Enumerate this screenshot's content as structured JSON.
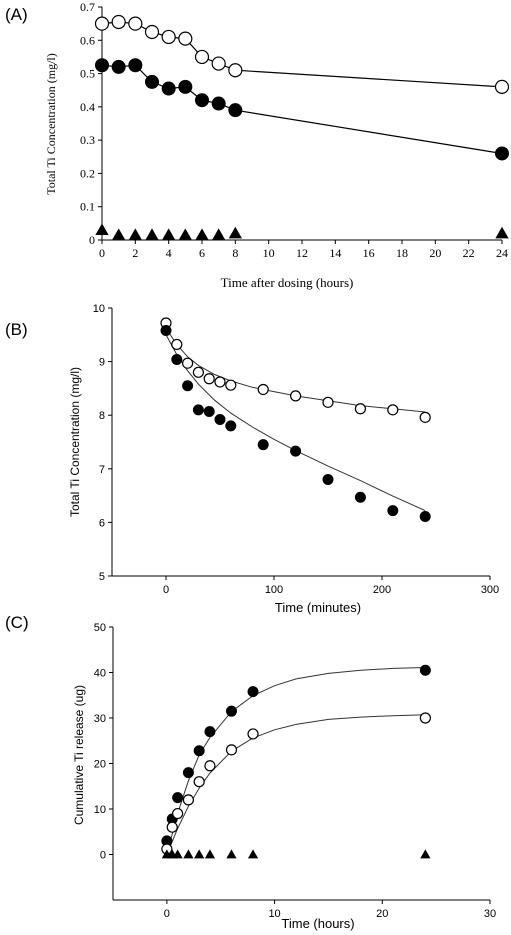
{
  "chart_data": [
    {
      "panel_label": "(A)",
      "type": "line",
      "title": "",
      "xlabel": "Time after dosing (hours)",
      "ylabel": "Total Ti Concentration (mg/l)",
      "xlim": [
        0,
        24
      ],
      "ylim": [
        0,
        0.7
      ],
      "xticks": [
        0,
        2,
        4,
        6,
        8,
        10,
        12,
        14,
        16,
        18,
        20,
        22,
        24
      ],
      "yticks": [
        0,
        0.1,
        0.2,
        0.3,
        0.4,
        0.5,
        0.6,
        0.7
      ],
      "xtick_labels": [
        "0",
        "2",
        "4",
        "6",
        "8",
        "10",
        "12",
        "14",
        "16",
        "18",
        "20",
        "22",
        "24"
      ],
      "ytick_labels": [
        "0",
        "0.1",
        "0.2",
        "0.3",
        "0.4",
        "0.5",
        "0.6",
        "0.7"
      ],
      "grid": false,
      "legend": "none",
      "series": [
        {
          "marker": "open-circle",
          "connected": true,
          "x": [
            0,
            1,
            2,
            3,
            4,
            5,
            6,
            7,
            8,
            24
          ],
          "y": [
            0.65,
            0.655,
            0.65,
            0.625,
            0.61,
            0.605,
            0.55,
            0.53,
            0.51,
            0.46
          ]
        },
        {
          "marker": "filled-circle",
          "connected": true,
          "x": [
            0,
            1,
            2,
            3,
            4,
            5,
            6,
            7,
            8,
            24
          ],
          "y": [
            0.525,
            0.52,
            0.525,
            0.475,
            0.455,
            0.46,
            0.42,
            0.41,
            0.39,
            0.26
          ]
        },
        {
          "marker": "filled-triangle",
          "connected": false,
          "x": [
            0,
            1,
            2,
            3,
            4,
            5,
            6,
            7,
            8,
            24
          ],
          "y": [
            0.03,
            0.015,
            0.015,
            0.015,
            0.015,
            0.015,
            0.015,
            0.015,
            0.02,
            0.02
          ]
        }
      ]
    },
    {
      "panel_label": "(B)",
      "type": "scatter",
      "title": "",
      "xlabel": "Time (minutes)",
      "ylabel": "Total Ti Concentration (mg/l)",
      "xlim": [
        -50,
        300
      ],
      "ylim": [
        5,
        10
      ],
      "xticks": [
        0,
        100,
        200,
        300
      ],
      "yticks": [
        5,
        6,
        7,
        8,
        9,
        10
      ],
      "xtick_labels": [
        "0",
        "100",
        "200",
        "300"
      ],
      "ytick_labels": [
        "5",
        "6",
        "7",
        "8",
        "9",
        "10"
      ],
      "grid": false,
      "legend": "none",
      "series": [
        {
          "marker": "open-circle",
          "x": [
            0,
            10,
            20,
            30,
            40,
            50,
            60,
            90,
            120,
            150,
            180,
            210,
            240
          ],
          "y": [
            9.72,
            9.32,
            8.97,
            8.8,
            8.68,
            8.62,
            8.56,
            8.48,
            8.36,
            8.24,
            8.12,
            8.1,
            7.96
          ]
        },
        {
          "marker": "filled-circle",
          "x": [
            0,
            10,
            20,
            30,
            40,
            50,
            60,
            90,
            120,
            150,
            180,
            210,
            240
          ],
          "y": [
            9.58,
            9.04,
            8.55,
            8.1,
            8.07,
            7.92,
            7.8,
            7.45,
            7.33,
            6.8,
            6.47,
            6.22,
            6.11
          ]
        }
      ],
      "fits": [
        {
          "for": "open-circle",
          "x": [
            0,
            10,
            20,
            30,
            45,
            60,
            80,
            100,
            120,
            150,
            180,
            210,
            240
          ],
          "y": [
            9.62,
            9.32,
            9.09,
            8.93,
            8.76,
            8.64,
            8.52,
            8.44,
            8.36,
            8.27,
            8.18,
            8.12,
            8.06
          ]
        },
        {
          "for": "filled-circle",
          "x": [
            0,
            10,
            20,
            30,
            45,
            60,
            80,
            100,
            120,
            150,
            180,
            210,
            240
          ],
          "y": [
            9.5,
            9.13,
            8.83,
            8.58,
            8.28,
            8.04,
            7.78,
            7.55,
            7.34,
            7.05,
            6.78,
            6.49,
            6.22
          ]
        }
      ]
    },
    {
      "panel_label": "(C)",
      "type": "scatter",
      "title": "",
      "xlabel": "Time (hours)",
      "ylabel": "Cumulative Ti release (ug)",
      "xlim": [
        -5,
        30
      ],
      "ylim": [
        -10,
        50
      ],
      "xticks": [
        0,
        10,
        20,
        30
      ],
      "yticks": [
        0,
        10,
        20,
        30,
        40,
        50
      ],
      "xtick_labels": [
        "0",
        "10",
        "20",
        "30"
      ],
      "ytick_labels": [
        "0",
        "10",
        "20",
        "30",
        "40",
        "50"
      ],
      "grid": false,
      "legend": "none",
      "series": [
        {
          "marker": "filled-circle",
          "x": [
            0,
            0.5,
            1,
            2,
            3,
            4,
            6,
            8,
            24
          ],
          "y": [
            3,
            7.8,
            12.5,
            18,
            22.8,
            27,
            31.5,
            35.8,
            40.5
          ]
        },
        {
          "marker": "open-circle",
          "x": [
            0,
            0.5,
            1,
            2,
            3,
            4,
            6,
            8,
            24
          ],
          "y": [
            1.2,
            6,
            9,
            12,
            16,
            19.5,
            23,
            26.5,
            30
          ]
        },
        {
          "marker": "filled-triangle",
          "x": [
            0,
            0.5,
            1,
            2,
            3,
            4,
            6,
            8,
            24
          ],
          "y": [
            0,
            0,
            0,
            0,
            0,
            0,
            0,
            0,
            0
          ]
        }
      ],
      "fits": [
        {
          "for": "filled-circle",
          "x": [
            0,
            1,
            2,
            3,
            4,
            6,
            8,
            10,
            12,
            15,
            18,
            21,
            24
          ],
          "y": [
            0,
            9,
            16.2,
            21.9,
            25.7,
            31.4,
            34.9,
            37.1,
            38.6,
            39.8,
            40.5,
            40.9,
            41.1
          ]
        },
        {
          "for": "open-circle",
          "x": [
            0,
            1,
            2,
            3,
            4,
            6,
            8,
            10,
            12,
            15,
            18,
            21,
            24
          ],
          "y": [
            0,
            5.7,
            10.6,
            14.6,
            17.9,
            22.7,
            25.6,
            27.4,
            28.6,
            29.7,
            30.2,
            30.5,
            30.7
          ]
        }
      ]
    }
  ]
}
